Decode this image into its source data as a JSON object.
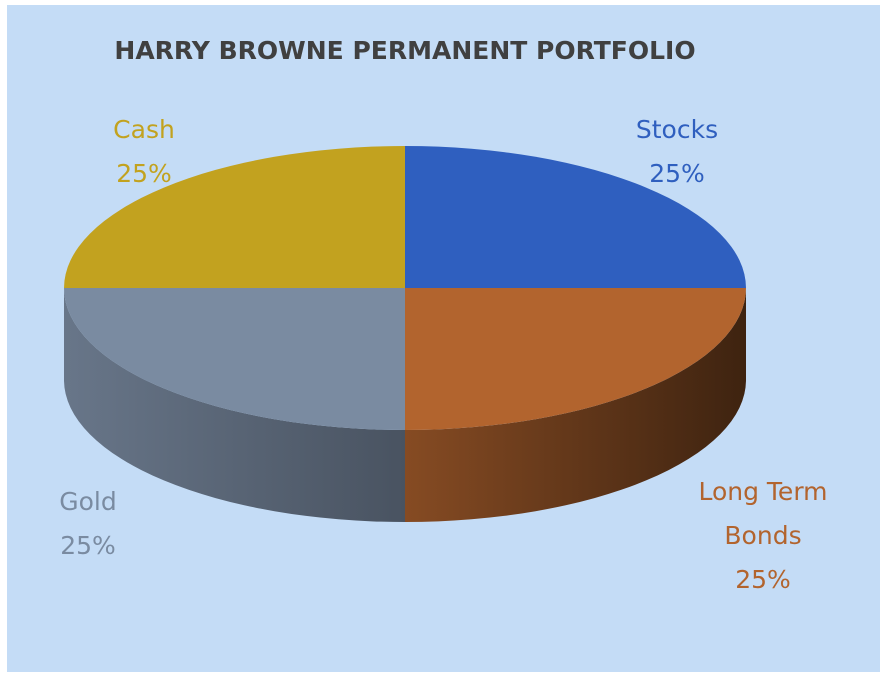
{
  "chart_data": {
    "type": "pie",
    "title": "HARRY BROWNE PERMANENT PORTFOLIO",
    "categories": [
      "Stocks",
      "Long Term Bonds",
      "Gold",
      "Cash"
    ],
    "values": [
      25,
      25,
      25,
      25
    ],
    "value_labels": [
      "25%",
      "25%",
      "25%",
      "25%"
    ],
    "colors": [
      "#2f5fbf",
      "#b2642e",
      "#7a8ba1",
      "#c2a21f"
    ],
    "three_d": true
  }
}
